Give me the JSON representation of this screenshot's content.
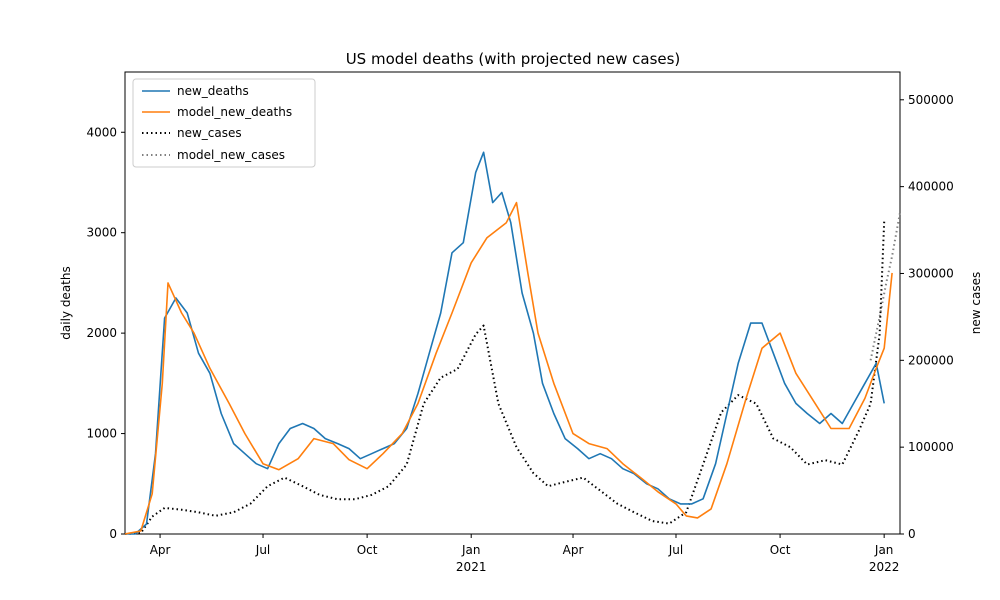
{
  "chart_data": {
    "type": "line",
    "title": "US model deaths (with projected new cases)",
    "ylabel": "daily deaths",
    "y2label": "new cases",
    "xlim": [
      "2020-03-01",
      "2022-01-15"
    ],
    "ylim": [
      0,
      4600
    ],
    "y2lim": [
      0,
      532000
    ],
    "x_ticks": [
      {
        "date": "2020-04-01",
        "label": "Apr",
        "sublabel": ""
      },
      {
        "date": "2020-07-01",
        "label": "Jul",
        "sublabel": ""
      },
      {
        "date": "2020-10-01",
        "label": "Oct",
        "sublabel": ""
      },
      {
        "date": "2021-01-01",
        "label": "Jan",
        "sublabel": "2021"
      },
      {
        "date": "2021-04-01",
        "label": "Apr",
        "sublabel": ""
      },
      {
        "date": "2021-07-01",
        "label": "Jul",
        "sublabel": ""
      },
      {
        "date": "2021-10-01",
        "label": "Oct",
        "sublabel": ""
      },
      {
        "date": "2022-01-01",
        "label": "Jan",
        "sublabel": "2022"
      }
    ],
    "y_ticks": [
      "0",
      "1000",
      "2000",
      "3000",
      "4000"
    ],
    "y2_ticks": [
      "0",
      "100000",
      "200000",
      "300000",
      "400000",
      "500000"
    ],
    "legend": {
      "placement": "upper-left",
      "entries": [
        "new_deaths",
        "model_new_deaths",
        "new_cases",
        "model_new_cases"
      ]
    },
    "colors": {
      "new_deaths": "#1f77b4",
      "model_new_deaths": "#ff7f0e",
      "new_cases": "#000000",
      "model_new_cases": "#808080"
    },
    "series": [
      {
        "name": "new_deaths",
        "axis": "left",
        "style": "solid",
        "x": [
          "2020-03-01",
          "2020-03-10",
          "2020-03-20",
          "2020-03-28",
          "2020-04-05",
          "2020-04-15",
          "2020-04-25",
          "2020-05-05",
          "2020-05-15",
          "2020-05-25",
          "2020-06-05",
          "2020-06-15",
          "2020-06-25",
          "2020-07-05",
          "2020-07-15",
          "2020-07-25",
          "2020-08-05",
          "2020-08-15",
          "2020-08-25",
          "2020-09-05",
          "2020-09-15",
          "2020-09-25",
          "2020-10-05",
          "2020-10-15",
          "2020-10-25",
          "2020-11-05",
          "2020-11-15",
          "2020-11-25",
          "2020-12-05",
          "2020-12-15",
          "2020-12-25",
          "2021-01-05",
          "2021-01-12",
          "2021-01-20",
          "2021-01-28",
          "2021-02-05",
          "2021-02-15",
          "2021-02-25",
          "2021-03-05",
          "2021-03-15",
          "2021-03-25",
          "2021-04-05",
          "2021-04-15",
          "2021-04-25",
          "2021-05-05",
          "2021-05-15",
          "2021-05-25",
          "2021-06-05",
          "2021-06-15",
          "2021-06-25",
          "2021-07-05",
          "2021-07-15",
          "2021-07-25",
          "2021-08-05",
          "2021-08-15",
          "2021-08-25",
          "2021-09-05",
          "2021-09-15",
          "2021-09-25",
          "2021-10-05",
          "2021-10-15",
          "2021-10-25",
          "2021-11-05",
          "2021-11-15",
          "2021-11-25",
          "2021-12-05",
          "2021-12-15",
          "2021-12-25",
          "2022-01-01"
        ],
        "values": [
          0,
          0,
          100,
          800,
          2150,
          2350,
          2200,
          1800,
          1600,
          1200,
          900,
          800,
          700,
          650,
          900,
          1050,
          1100,
          1050,
          950,
          900,
          850,
          750,
          800,
          850,
          900,
          1050,
          1400,
          1800,
          2200,
          2800,
          2900,
          3600,
          3800,
          3300,
          3400,
          3100,
          2400,
          2000,
          1500,
          1200,
          950,
          850,
          750,
          800,
          750,
          650,
          600,
          500,
          450,
          350,
          300,
          300,
          350,
          700,
          1200,
          1700,
          2100,
          2100,
          1800,
          1500,
          1300,
          1200,
          1100,
          1200,
          1100,
          1300,
          1500,
          1700,
          1300
        ]
      },
      {
        "name": "model_new_deaths",
        "axis": "left",
        "style": "solid",
        "x": [
          "2020-03-01",
          "2020-03-15",
          "2020-03-25",
          "2020-04-03",
          "2020-04-08",
          "2020-04-20",
          "2020-05-01",
          "2020-05-15",
          "2020-06-01",
          "2020-06-15",
          "2020-07-01",
          "2020-07-15",
          "2020-08-01",
          "2020-08-15",
          "2020-09-01",
          "2020-09-15",
          "2020-10-01",
          "2020-10-15",
          "2020-11-01",
          "2020-11-15",
          "2020-12-01",
          "2020-12-15",
          "2021-01-01",
          "2021-01-15",
          "2021-02-01",
          "2021-02-10",
          "2021-02-20",
          "2021-03-01",
          "2021-03-15",
          "2021-04-01",
          "2021-04-15",
          "2021-05-01",
          "2021-05-15",
          "2021-06-01",
          "2021-06-15",
          "2021-07-01",
          "2021-07-10",
          "2021-07-20",
          "2021-08-01",
          "2021-08-15",
          "2021-09-01",
          "2021-09-15",
          "2021-10-01",
          "2021-10-15",
          "2021-11-01",
          "2021-11-15",
          "2021-12-01",
          "2021-12-15",
          "2021-12-25",
          "2022-01-01",
          "2022-01-08"
        ],
        "values": [
          0,
          30,
          400,
          1500,
          2500,
          2200,
          2000,
          1650,
          1300,
          1000,
          700,
          640,
          750,
          950,
          900,
          740,
          650,
          800,
          1000,
          1300,
          1800,
          2200,
          2700,
          2950,
          3100,
          3300,
          2600,
          2000,
          1500,
          1000,
          900,
          850,
          700,
          550,
          420,
          300,
          180,
          160,
          250,
          700,
          1350,
          1850,
          2000,
          1600,
          1300,
          1050,
          1050,
          1350,
          1650,
          1850,
          2600
        ]
      },
      {
        "name": "new_cases",
        "axis": "right",
        "style": "dotted",
        "x": [
          "2020-03-01",
          "2020-03-15",
          "2020-03-25",
          "2020-04-05",
          "2020-04-20",
          "2020-05-05",
          "2020-05-20",
          "2020-06-05",
          "2020-06-20",
          "2020-07-05",
          "2020-07-20",
          "2020-08-05",
          "2020-08-20",
          "2020-09-05",
          "2020-09-20",
          "2020-10-05",
          "2020-10-20",
          "2020-11-05",
          "2020-11-20",
          "2020-12-05",
          "2020-12-20",
          "2021-01-05",
          "2021-01-12",
          "2021-01-25",
          "2021-02-10",
          "2021-02-25",
          "2021-03-10",
          "2021-03-25",
          "2021-04-10",
          "2021-04-25",
          "2021-05-10",
          "2021-05-25",
          "2021-06-10",
          "2021-06-25",
          "2021-07-10",
          "2021-07-25",
          "2021-08-10",
          "2021-08-25",
          "2021-09-10",
          "2021-09-25",
          "2021-10-10",
          "2021-10-25",
          "2021-11-10",
          "2021-11-25",
          "2021-12-10",
          "2021-12-20",
          "2021-12-28",
          "2022-01-01"
        ],
        "values": [
          0,
          1000,
          20000,
          30000,
          28000,
          25000,
          21000,
          25000,
          35000,
          55000,
          65000,
          55000,
          45000,
          40000,
          40000,
          45000,
          55000,
          80000,
          150000,
          180000,
          190000,
          230000,
          240000,
          150000,
          100000,
          70000,
          55000,
          60000,
          65000,
          50000,
          35000,
          25000,
          15000,
          12000,
          25000,
          80000,
          140000,
          160000,
          150000,
          110000,
          100000,
          80000,
          85000,
          80000,
          120000,
          150000,
          230000,
          360000
        ]
      },
      {
        "name": "model_new_cases",
        "axis": "right",
        "style": "dotted",
        "x": [
          "2021-12-20",
          "2021-12-28",
          "2022-01-03",
          "2022-01-08",
          "2022-01-15"
        ],
        "values": [
          200000,
          250000,
          290000,
          320000,
          370000
        ]
      }
    ]
  }
}
